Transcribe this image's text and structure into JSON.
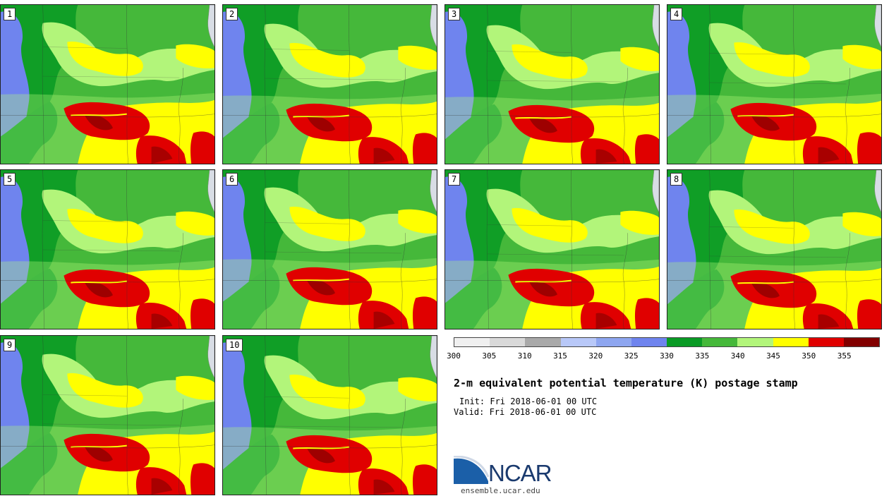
{
  "panels": [
    {
      "label": "1"
    },
    {
      "label": "2"
    },
    {
      "label": "3"
    },
    {
      "label": "4"
    },
    {
      "label": "5"
    },
    {
      "label": "6"
    },
    {
      "label": "7"
    },
    {
      "label": "8"
    },
    {
      "label": "9"
    },
    {
      "label": "10"
    }
  ],
  "colorbar": {
    "ticks": [
      "300",
      "305",
      "310",
      "315",
      "320",
      "325",
      "330",
      "335",
      "340",
      "345",
      "350",
      "355"
    ],
    "colors": [
      "#f0f0f0",
      "#d9d9d9",
      "#a9a9a9",
      "#b8c8f8",
      "#8ea6f0",
      "#6f84ee",
      "#0a9b25",
      "#45b83a",
      "#b2f57a",
      "#ffff00",
      "#e00000",
      "#820000"
    ]
  },
  "title": "2-m equivalent potential temperature (K) postage stamp",
  "init": "Init: Fri 2018-06-01 00 UTC",
  "valid": "Valid: Fri 2018-06-01 00 UTC",
  "logo": {
    "name": "NCAR",
    "url": "ensemble.ucar.edu"
  }
}
